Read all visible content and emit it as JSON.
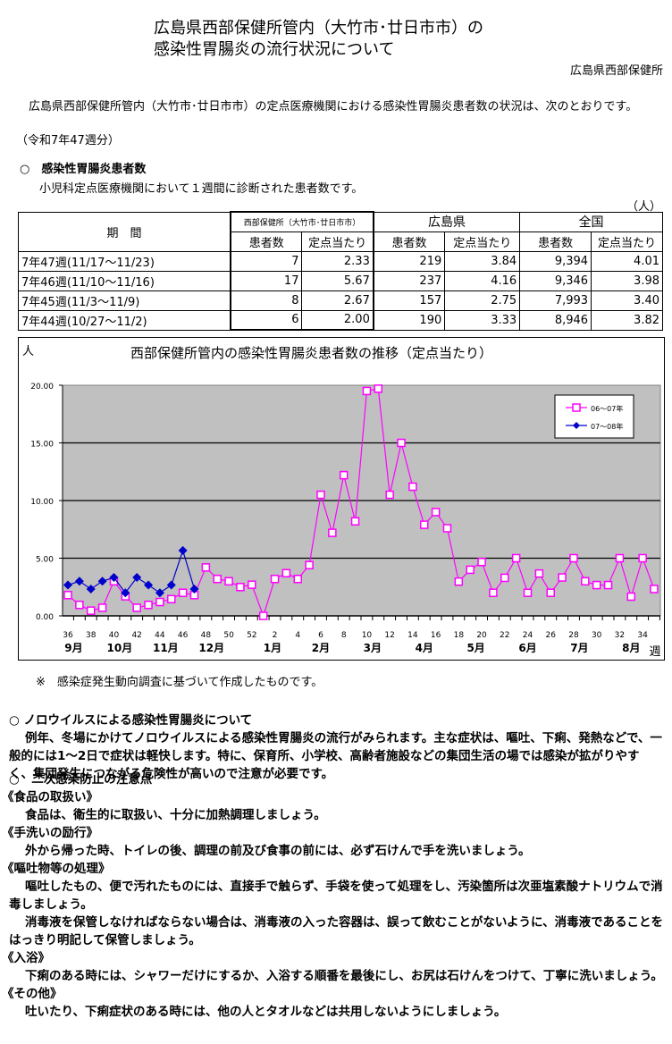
{
  "header": {
    "title_line1": "広島県西部保健所管内（大竹市･廿日市市）の",
    "title_line2": "感染性胃腸炎の流行状況について",
    "organization": "広島県西部保健所"
  },
  "intro": {
    "text": "広島県西部保健所管内（大竹市･廿日市市）の定点医療機関における感染性胃腸炎患者数の状況は、次のとおりです。",
    "period": "（令和7年47週分）"
  },
  "section1": {
    "title": "○　感染性胃腸炎患者数",
    "subtitle": "小児科定点医療機関において１週間に診断された患者数です。",
    "unit": "（人）"
  },
  "table": {
    "period_header": "期　間",
    "groups": [
      "西部保健所（大竹市･廿日市市）",
      "広島県",
      "全国"
    ],
    "subheaders": [
      "患者数",
      "定点当たり",
      "患者数",
      "定点当たり",
      "患者数",
      "定点当たり"
    ],
    "rows": [
      {
        "period": "7年47週(11/17～11/23)",
        "values": [
          "7",
          "2.33",
          "219",
          "3.84",
          "9,394",
          "4.01"
        ]
      },
      {
        "period": "7年46週(11/10～11/16)",
        "values": [
          "17",
          "5.67",
          "237",
          "4.16",
          "9,346",
          "3.98"
        ]
      },
      {
        "period": "7年45週(11/3～11/9)",
        "values": [
          "8",
          "2.67",
          "157",
          "2.75",
          "7,993",
          "3.40"
        ]
      },
      {
        "period": "7年44週(10/27～11/2)",
        "values": [
          "6",
          "2.00",
          "190",
          "3.33",
          "8,946",
          "3.82"
        ]
      }
    ]
  },
  "chart": {
    "unit_label": "人",
    "week_label": "週",
    "legend": [
      "06～07年",
      "07～08年"
    ],
    "colors": {
      "series1": "#ff00ff",
      "series2": "#0000cc",
      "plot_bg": "#c0c0c0"
    },
    "month_labels": [
      "9月",
      "10月",
      "11月",
      "12月",
      "1月",
      "2月",
      "3月",
      "4月",
      "5月",
      "6月",
      "7月",
      "8月"
    ]
  },
  "chart_data": {
    "type": "line",
    "title": "西部保健所管内の感染性胃腸炎患者数の推移（定点当たり）",
    "xlabel": "週",
    "ylabel": "人",
    "ylim": [
      0,
      20
    ],
    "yticks": [
      "0.00",
      "5.00",
      "10.00",
      "15.00",
      "20.00"
    ],
    "grid": true,
    "legend_position": "top-right",
    "x": [
      36,
      37,
      38,
      39,
      40,
      41,
      42,
      43,
      44,
      45,
      46,
      47,
      48,
      49,
      50,
      51,
      52,
      1,
      2,
      3,
      4,
      5,
      6,
      7,
      8,
      9,
      10,
      11,
      12,
      13,
      14,
      15,
      16,
      17,
      18,
      19,
      20,
      21,
      22,
      23,
      24,
      25,
      26,
      27,
      28,
      29,
      30,
      31,
      32,
      33,
      34,
      35
    ],
    "x_tick_labels": [
      "36",
      "38",
      "40",
      "42",
      "44",
      "46",
      "48",
      "50",
      "52",
      "2",
      "4",
      "6",
      "8",
      "10",
      "12",
      "14",
      "16",
      "18",
      "20",
      "22",
      "24",
      "26",
      "28",
      "30",
      "32",
      "34"
    ],
    "series": [
      {
        "name": "06～07年",
        "marker": "square-open",
        "values": [
          1.8,
          0.95,
          0.45,
          0.7,
          3.0,
          1.7,
          0.7,
          0.95,
          1.2,
          1.45,
          2.0,
          1.8,
          4.2,
          3.2,
          3.0,
          2.5,
          2.7,
          0.0,
          3.2,
          3.7,
          3.2,
          4.4,
          10.5,
          7.2,
          12.2,
          8.2,
          19.5,
          19.7,
          10.5,
          15.0,
          11.2,
          7.9,
          9.0,
          7.6,
          2.97,
          4.0,
          4.67,
          2.0,
          3.3,
          5.0,
          2.0,
          3.67,
          2.0,
          3.33,
          5.0,
          3.0,
          2.67,
          2.67,
          5.0,
          1.67,
          5.0,
          2.33
        ]
      },
      {
        "name": "07～08年",
        "marker": "diamond-filled",
        "values": [
          2.67,
          3.0,
          2.33,
          3.0,
          3.33,
          2.0,
          3.33,
          2.67,
          2.0,
          2.67,
          5.67,
          2.33
        ]
      }
    ]
  },
  "chart_note": "※　感染症発生動向調査に基づいて作成したものです。",
  "section2": {
    "title": "○ ノロウイルスによる感染性胃腸炎について",
    "text": "例年、冬場にかけてノロウイルスによる感染性胃腸炎の流行がみられます。主な症状は、嘔吐、下痢、発熱などで、一般的には1～2日で症状は軽快します。特に、保育所、小学校、高齢者施設などの集団生活の場では感染が拡がりやすく、集団発生につながる危険性が高いので注意が必要です。"
  },
  "section3": {
    "title": "○　二次感染防止の注意点",
    "items": [
      {
        "heading": "《食品の取扱い》",
        "texts": [
          "食品は、衛生的に取扱い、十分に加熱調理しましょう。"
        ]
      },
      {
        "heading": "《手洗いの励行》",
        "texts": [
          "外から帰った時、トイレの後、調理の前及び食事の前には、必ず石けんで手を洗いましょう。"
        ]
      },
      {
        "heading": "《嘔吐物等の処理》",
        "texts": [
          "嘔吐したもの、便で汚れたものには、直接手で触らず、手袋を使って処理をし、汚染箇所は次亜塩素酸ナトリウムで消毒しましょう。",
          "消毒液を保管しなければならない場合は、消毒液の入った容器は、誤って飲むことがないように、消毒液であることをはっきり明記して保管しましょう。"
        ]
      },
      {
        "heading": "《入浴》",
        "texts": [
          "下痢のある時には、シャワーだけにするか、入浴する順番を最後にし、お尻は石けんをつけて、丁寧に洗いましょう。"
        ]
      },
      {
        "heading": "《その他》",
        "texts": [
          "吐いたり、下痢症状のある時には、他の人とタオルなどは共用しないようにしましょう。"
        ]
      }
    ]
  }
}
